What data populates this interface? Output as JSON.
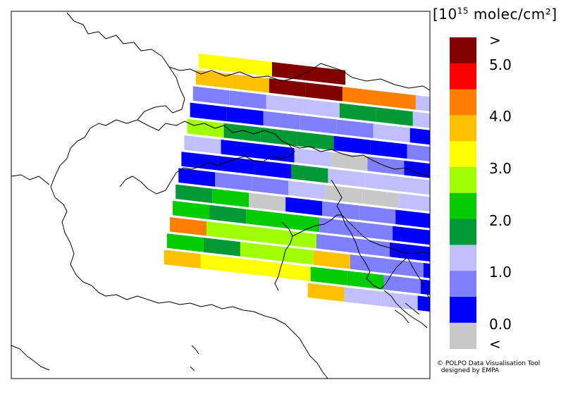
{
  "legend": {
    "title_prefix": "[10",
    "title_exp": "15",
    "title_suffix": " molec/cm²]",
    "colors": [
      "#800000",
      "#ff0000",
      "#ff8000",
      "#ffc000",
      "#ffff00",
      "#a0ff00",
      "#00cc00",
      "#009933",
      "#c0c0ff",
      "#8080ff",
      "#0000ff",
      "#c8c8c8"
    ],
    "labels": [
      ">",
      "5.0",
      "4.0",
      "3.0",
      "2.0",
      "1.0",
      "0.0",
      "<"
    ]
  },
  "credit": "© POLPO Data Visualisation Tool\n  designed by EMPA",
  "grid": {
    "rows": [
      [
        4,
        4,
        0,
        0,
        -1,
        -1,
        -1,
        -1,
        -1,
        -1,
        -1
      ],
      [
        3,
        3,
        0,
        0,
        2,
        2,
        8,
        6,
        11,
        8,
        11
      ],
      [
        9,
        9,
        8,
        8,
        7,
        7,
        8,
        10,
        11,
        10,
        11
      ],
      [
        10,
        10,
        9,
        9,
        9,
        8,
        10,
        8,
        10,
        8,
        8
      ],
      [
        5,
        7,
        7,
        7,
        10,
        10,
        9,
        11,
        10,
        8,
        8
      ],
      [
        8,
        10,
        10,
        8,
        11,
        9,
        10,
        10,
        10,
        10,
        10
      ],
      [
        10,
        10,
        10,
        7,
        8,
        8,
        8,
        10,
        10,
        10,
        8
      ],
      [
        10,
        9,
        9,
        8,
        11,
        11,
        8,
        9,
        7,
        8,
        8
      ],
      [
        7,
        6,
        11,
        10,
        9,
        9,
        10,
        9,
        6,
        6,
        9
      ],
      [
        6,
        7,
        6,
        6,
        9,
        9,
        10,
        10,
        9,
        9,
        9
      ],
      [
        2,
        5,
        5,
        5,
        9,
        9,
        10,
        10,
        8,
        8,
        11
      ],
      [
        6,
        7,
        5,
        5,
        3,
        9,
        9,
        10,
        10,
        10,
        11
      ],
      [
        3,
        4,
        4,
        4,
        6,
        6,
        9,
        10,
        10,
        10,
        10
      ],
      [
        -1,
        -1,
        -1,
        -1,
        3,
        8,
        8,
        10,
        10,
        9,
        8
      ]
    ]
  }
}
